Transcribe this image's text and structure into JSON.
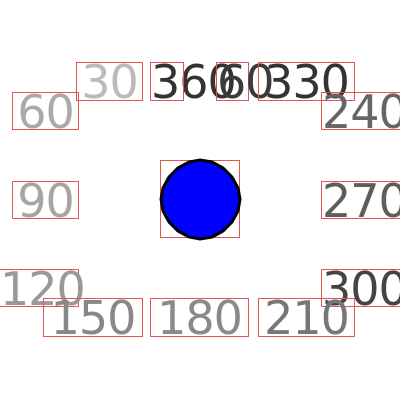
{
  "labels": {
    "l30": {
      "text": "30",
      "color": "#bbbbbb"
    },
    "l360": {
      "text": "360",
      "color": "#333333"
    },
    "l60": {
      "text": "60",
      "color": "#3a3a3a"
    },
    "l330": {
      "text": "330",
      "color": "#333333"
    },
    "l60b": {
      "text": "60",
      "color": "#aaaaaa"
    },
    "l240": {
      "text": "240",
      "color": "#666666"
    },
    "l90": {
      "text": "90",
      "color": "#a5a5a5"
    },
    "l270": {
      "text": "270",
      "color": "#5e5e5e"
    },
    "l120": {
      "text": "120",
      "color": "#999999"
    },
    "l300": {
      "text": "300",
      "color": "#444444"
    },
    "l150": {
      "text": "150",
      "color": "#888888"
    },
    "l180": {
      "text": "180",
      "color": "#8a8a8a"
    },
    "l210": {
      "text": "210",
      "color": "#777777"
    }
  },
  "center": {
    "shape": "polygon-circle",
    "fill": "#0000ff",
    "stroke": "#000000"
  },
  "box_outline_color": "#e05555"
}
